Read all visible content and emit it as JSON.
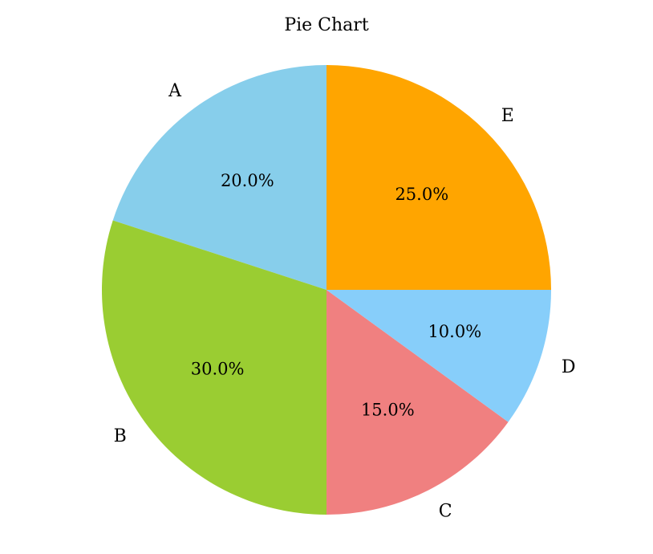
{
  "chart_data": {
    "type": "pie",
    "title": "Pie Chart",
    "categories": [
      "A",
      "B",
      "C",
      "D",
      "E"
    ],
    "values": [
      20.0,
      30.0,
      15.0,
      10.0,
      25.0
    ],
    "value_labels": [
      "20.0%",
      "30.0%",
      "15.0%",
      "10.0%",
      "25.0%"
    ],
    "colors": [
      "#87ceeb",
      "#9acd32",
      "#f08080",
      "#87cefa",
      "#ffa500"
    ],
    "start_angle_deg": 90,
    "direction": "counterclockwise",
    "legend": "none"
  }
}
